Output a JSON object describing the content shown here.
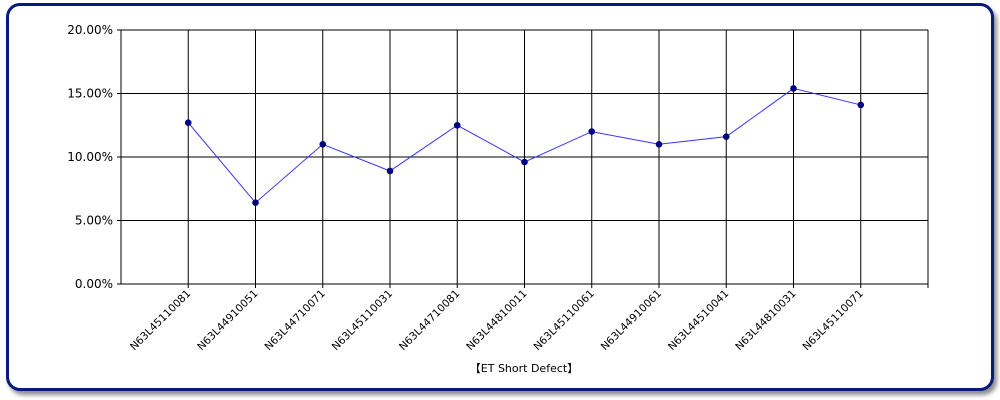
{
  "chart_data": {
    "type": "line",
    "categories": [
      "N63L45110081",
      "N63L44910051",
      "N63L44710071",
      "N63L45110031",
      "N63L44710081",
      "N63L44810011",
      "N63L45110061",
      "N63L44910061",
      "N63L44510041",
      "N63L44810031",
      "N63L45110071"
    ],
    "series": [
      {
        "values": [
          12.7,
          6.4,
          11.0,
          8.9,
          12.5,
          9.6,
          12.0,
          11.0,
          11.6,
          15.4,
          14.1
        ]
      }
    ],
    "y_ticks": [
      "0.00%",
      "5.00%",
      "10.00%",
      "15.00%",
      "20.00%"
    ],
    "ylim": [
      0,
      20
    ],
    "xlabel": "【ET Short Defect】",
    "ylabel": "",
    "grid": true,
    "line_color": "#3333ff",
    "marker_color": "#000080"
  }
}
